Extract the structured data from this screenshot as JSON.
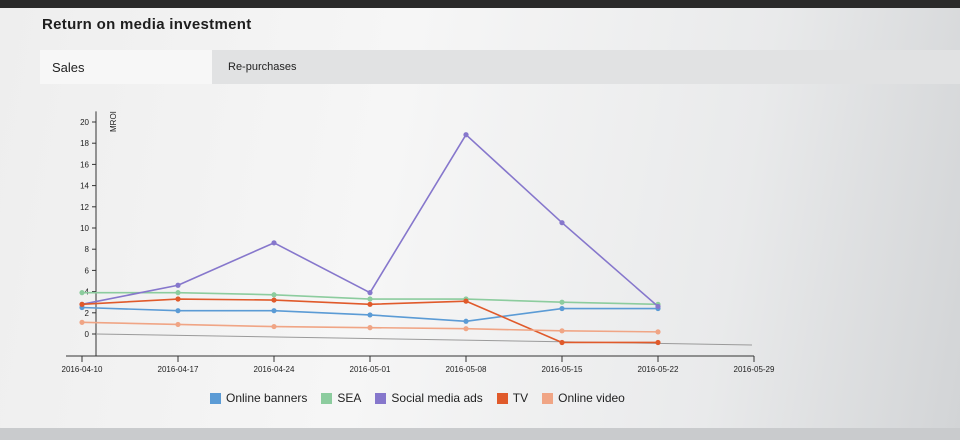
{
  "title": "Return on media investment",
  "tabs": [
    {
      "label": "Sales",
      "active": true
    },
    {
      "label": "Re-purchases",
      "active": false
    }
  ],
  "chart_data": {
    "type": "line",
    "ylabel": "MROI",
    "ylim": [
      -2,
      21
    ],
    "yticks": [
      "0",
      "2",
      "4",
      "6",
      "8",
      "10",
      "12",
      "14",
      "16",
      "18",
      "20"
    ],
    "x": [
      "2016-04-10",
      "2016-04-17",
      "2016-04-24",
      "2016-05-01",
      "2016-05-08",
      "2016-05-15",
      "2016-05-22",
      "2016-05-29"
    ],
    "grid": false,
    "legend_position": "bottom",
    "series": [
      {
        "name": "Online banners",
        "color": "#5b9bd5",
        "values": [
          2.5,
          2.2,
          2.2,
          1.8,
          1.2,
          2.4,
          2.4,
          null
        ]
      },
      {
        "name": "SEA",
        "color": "#8ccc9e",
        "values": [
          3.9,
          3.9,
          3.7,
          3.3,
          3.3,
          3.0,
          2.8,
          null
        ]
      },
      {
        "name": "Social media ads",
        "color": "#8677cc",
        "values": [
          2.8,
          4.6,
          8.6,
          3.9,
          18.8,
          10.5,
          2.6,
          null
        ]
      },
      {
        "name": "TV",
        "color": "#e05a2b",
        "values": [
          2.8,
          3.3,
          3.2,
          2.8,
          3.1,
          -0.8,
          -0.8,
          null
        ]
      },
      {
        "name": "Online video",
        "color": "#f0a585",
        "values": [
          1.1,
          0.9,
          0.7,
          0.6,
          0.5,
          0.3,
          0.2,
          null
        ]
      }
    ]
  }
}
